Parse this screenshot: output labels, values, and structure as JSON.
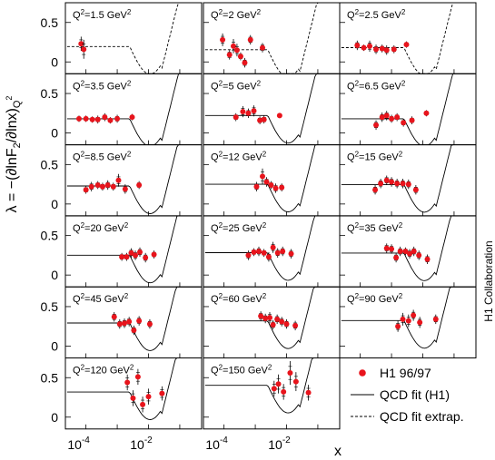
{
  "chart_data": {
    "type": "scatter",
    "ylabel_main": "λ = −(∂lnF",
    "ylabel_sub2": "2",
    "ylabel_mid": "/∂lnx)",
    "ylabel_subq": "Q",
    "ylabel_supq": "2",
    "xlabel": "x",
    "collaboration": "H1 Collaboration",
    "x_scale": "log",
    "x_ticks": [
      {
        "value": 0.0001,
        "base": "10",
        "exp": "-4"
      },
      {
        "value": 0.01,
        "base": "10",
        "exp": "-2"
      }
    ],
    "y_ticks": [
      0,
      0.5
    ],
    "ylim": [
      -0.15,
      0.75
    ],
    "legend": {
      "data_label": "H1 96/97",
      "fit_label": "QCD fit (H1)",
      "extrap_label": "QCD fit extrap."
    },
    "colors": {
      "data": "#e8141c",
      "line": "#000000"
    },
    "panels": [
      {
        "label_prefix": "Q",
        "label_sup": "2",
        "label_value": "=1.5 GeV",
        "label_unit_sup": "2",
        "points": [
          [
            7e-05,
            0.23,
            0.09
          ],
          [
            8.5e-05,
            0.16,
            0.12
          ]
        ],
        "curve_style": "dashed"
      },
      {
        "label_prefix": "Q",
        "label_sup": "2",
        "label_value": "=2 GeV",
        "label_unit_sup": "2",
        "points": [
          [
            9e-05,
            0.28,
            0.08
          ],
          [
            0.00015,
            0.09,
            0.06
          ],
          [
            0.0002,
            0.2,
            0.09
          ],
          [
            0.00026,
            0.15,
            0.08
          ],
          [
            0.00034,
            0.07,
            0.05
          ],
          [
            0.00046,
            -0.01,
            0.06
          ],
          [
            0.0007,
            0.28,
            0.06
          ],
          [
            0.0017,
            0.18,
            0.06
          ]
        ],
        "curve_style": "dashed"
      },
      {
        "label_prefix": "Q",
        "label_sup": "2",
        "label_value": "=2.5 GeV",
        "label_unit_sup": "2",
        "points": [
          [
            8e-05,
            0.21,
            0.06
          ],
          [
            0.00013,
            0.18,
            0.04
          ],
          [
            0.0002,
            0.2,
            0.07
          ],
          [
            0.00032,
            0.16,
            0.06
          ],
          [
            0.0005,
            0.17,
            0.05
          ],
          [
            0.0007,
            0.15,
            0.06
          ],
          [
            0.0012,
            0.16,
            0.05
          ],
          [
            0.003,
            0.22,
            0.04
          ]
        ],
        "curve_style": "dashed"
      },
      {
        "label_prefix": "Q",
        "label_sup": "2",
        "label_value": "=3.5 GeV",
        "label_unit_sup": "2",
        "points": [
          [
            6e-05,
            0.18,
            0.04
          ],
          [
            0.0001,
            0.18,
            0.04
          ],
          [
            0.00016,
            0.17,
            0.04
          ],
          [
            0.00024,
            0.17,
            0.05
          ],
          [
            0.0004,
            0.2,
            0.05
          ],
          [
            0.0006,
            0.16,
            0.04
          ],
          [
            0.001,
            0.18,
            0.05
          ],
          [
            0.003,
            0.2,
            0.04
          ]
        ],
        "curve_style": "solid"
      },
      {
        "label_prefix": "Q",
        "label_sup": "2",
        "label_value": "=5 GeV",
        "label_unit_sup": "2",
        "points": [
          [
            0.00024,
            0.2,
            0.05
          ],
          [
            0.0004,
            0.27,
            0.07
          ],
          [
            0.0006,
            0.25,
            0.06
          ],
          [
            0.0009,
            0.28,
            0.07
          ],
          [
            0.0014,
            0.16,
            0.05
          ],
          [
            0.0019,
            0.17,
            0.05
          ],
          [
            0.006,
            0.22,
            0.03
          ]
        ],
        "curve_style": "solid"
      },
      {
        "label_prefix": "Q",
        "label_sup": "2",
        "label_value": "=6.5 GeV",
        "label_unit_sup": "2",
        "points": [
          [
            0.00032,
            0.1,
            0.06
          ],
          [
            0.0005,
            0.2,
            0.06
          ],
          [
            0.0007,
            0.22,
            0.06
          ],
          [
            0.001,
            0.18,
            0.05
          ],
          [
            0.0015,
            0.2,
            0.05
          ],
          [
            0.0024,
            0.13,
            0.05
          ],
          [
            0.0045,
            0.16,
            0.05
          ],
          [
            0.013,
            0.25,
            0.04
          ]
        ],
        "curve_style": "solid"
      },
      {
        "label_prefix": "Q",
        "label_sup": "2",
        "label_value": "=8.5 GeV",
        "label_unit_sup": "2",
        "points": [
          [
            0.0001,
            0.18,
            0.05
          ],
          [
            0.00015,
            0.22,
            0.06
          ],
          [
            0.00024,
            0.24,
            0.05
          ],
          [
            0.00034,
            0.22,
            0.05
          ],
          [
            0.0005,
            0.24,
            0.06
          ],
          [
            0.00075,
            0.22,
            0.05
          ],
          [
            0.0011,
            0.3,
            0.08
          ],
          [
            0.0018,
            0.19,
            0.06
          ],
          [
            0.005,
            0.24,
            0.05
          ]
        ],
        "curve_style": "solid"
      },
      {
        "label_prefix": "Q",
        "label_sup": "2",
        "label_value": "=12 GeV",
        "label_unit_sup": "2",
        "points": [
          [
            0.0011,
            0.22,
            0.06
          ],
          [
            0.0017,
            0.35,
            0.1
          ],
          [
            0.0023,
            0.28,
            0.06
          ],
          [
            0.0032,
            0.24,
            0.05
          ],
          [
            0.0045,
            0.2,
            0.06
          ],
          [
            0.007,
            0.21,
            0.05
          ]
        ],
        "curve_style": "solid"
      },
      {
        "label_prefix": "Q",
        "label_sup": "2",
        "label_value": "=15 GeV",
        "label_unit_sup": "2",
        "points": [
          [
            0.0003,
            0.18,
            0.06
          ],
          [
            0.00045,
            0.26,
            0.06
          ],
          [
            0.0007,
            0.3,
            0.06
          ],
          [
            0.001,
            0.28,
            0.06
          ],
          [
            0.0015,
            0.26,
            0.06
          ],
          [
            0.0023,
            0.26,
            0.06
          ],
          [
            0.0035,
            0.25,
            0.06
          ],
          [
            0.006,
            0.18,
            0.06
          ]
        ],
        "curve_style": "solid"
      },
      {
        "label_prefix": "Q",
        "label_sup": "2",
        "label_value": "=20 GeV",
        "label_unit_sup": "2",
        "points": [
          [
            0.0014,
            0.23,
            0.05
          ],
          [
            0.002,
            0.23,
            0.05
          ],
          [
            0.0028,
            0.28,
            0.06
          ],
          [
            0.0038,
            0.25,
            0.06
          ],
          [
            0.0053,
            0.29,
            0.06
          ],
          [
            0.008,
            0.22,
            0.06
          ],
          [
            0.015,
            0.26,
            0.05
          ]
        ],
        "curve_style": "solid"
      },
      {
        "label_prefix": "Q",
        "label_sup": "2",
        "label_value": "=25 GeV",
        "label_unit_sup": "2",
        "points": [
          [
            0.0006,
            0.25,
            0.06
          ],
          [
            0.0009,
            0.29,
            0.05
          ],
          [
            0.0013,
            0.3,
            0.06
          ],
          [
            0.0019,
            0.28,
            0.05
          ],
          [
            0.0027,
            0.23,
            0.06
          ],
          [
            0.0037,
            0.35,
            0.07
          ],
          [
            0.0052,
            0.28,
            0.06
          ],
          [
            0.0075,
            0.3,
            0.06
          ],
          [
            0.014,
            0.27,
            0.06
          ]
        ],
        "curve_style": "solid"
      },
      {
        "label_prefix": "Q",
        "label_sup": "2",
        "label_value": "=35 GeV",
        "label_unit_sup": "2",
        "points": [
          [
            0.0007,
            0.34,
            0.06
          ],
          [
            0.001,
            0.33,
            0.06
          ],
          [
            0.0014,
            0.22,
            0.06
          ],
          [
            0.0019,
            0.3,
            0.06
          ],
          [
            0.0028,
            0.3,
            0.05
          ],
          [
            0.0038,
            0.27,
            0.06
          ],
          [
            0.0052,
            0.3,
            0.06
          ],
          [
            0.0075,
            0.25,
            0.06
          ],
          [
            0.014,
            0.2,
            0.06
          ]
        ],
        "curve_style": "solid"
      },
      {
        "label_prefix": "Q",
        "label_sup": "2",
        "label_value": "=45 GeV",
        "label_unit_sup": "2",
        "points": [
          [
            0.0008,
            0.37,
            0.06
          ],
          [
            0.0012,
            0.28,
            0.06
          ],
          [
            0.0017,
            0.29,
            0.06
          ],
          [
            0.0024,
            0.31,
            0.06
          ],
          [
            0.0034,
            0.2,
            0.06
          ],
          [
            0.005,
            0.32,
            0.06
          ],
          [
            0.011,
            0.28,
            0.06
          ]
        ],
        "curve_style": "solid"
      },
      {
        "label_prefix": "Q",
        "label_sup": "2",
        "label_value": "=60 GeV",
        "label_unit_sup": "2",
        "points": [
          [
            0.0015,
            0.38,
            0.06
          ],
          [
            0.0021,
            0.35,
            0.06
          ],
          [
            0.0029,
            0.36,
            0.07
          ],
          [
            0.0037,
            0.27,
            0.06
          ],
          [
            0.005,
            0.34,
            0.06
          ],
          [
            0.007,
            0.31,
            0.06
          ],
          [
            0.01,
            0.28,
            0.06
          ],
          [
            0.019,
            0.26,
            0.06
          ]
        ],
        "curve_style": "solid"
      },
      {
        "label_prefix": "Q",
        "label_sup": "2",
        "label_value": "=90 GeV",
        "label_unit_sup": "2",
        "points": [
          [
            0.0016,
            0.25,
            0.07
          ],
          [
            0.0023,
            0.34,
            0.08
          ],
          [
            0.0035,
            0.32,
            0.08
          ],
          [
            0.005,
            0.39,
            0.07
          ],
          [
            0.008,
            0.3,
            0.07
          ],
          [
            0.026,
            0.34,
            0.06
          ]
        ],
        "curve_style": "solid"
      },
      {
        "label_prefix": "Q",
        "label_sup": "2",
        "label_value": "=120 GeV",
        "label_unit_sup": "2",
        "points": [
          [
            0.0021,
            0.44,
            0.1
          ],
          [
            0.0032,
            0.24,
            0.1
          ],
          [
            0.0046,
            0.51,
            0.1
          ],
          [
            0.0065,
            0.16,
            0.1
          ],
          [
            0.01,
            0.26,
            0.1
          ],
          [
            0.027,
            0.3,
            0.09
          ]
        ],
        "curve_style": "solid"
      },
      {
        "label_prefix": "Q",
        "label_sup": "2",
        "label_value": "=150 GeV",
        "label_unit_sup": "2",
        "points": [
          [
            0.004,
            0.36,
            0.1
          ],
          [
            0.0055,
            0.42,
            0.12
          ],
          [
            0.008,
            0.32,
            0.1
          ],
          [
            0.013,
            0.56,
            0.15
          ],
          [
            0.02,
            0.45,
            0.12
          ],
          [
            0.05,
            0.31,
            0.1
          ]
        ],
        "curve_style": "solid"
      }
    ]
  }
}
